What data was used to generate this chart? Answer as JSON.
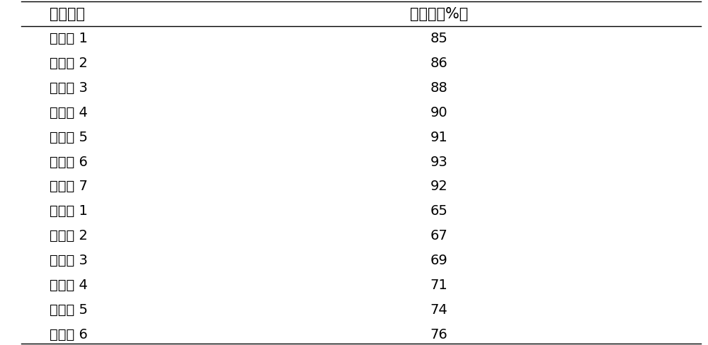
{
  "col1_header": "助剂编号",
  "col2_header": "悬浮率（%）",
  "rows": [
    [
      "实施例 1",
      "85"
    ],
    [
      "实施例 2",
      "86"
    ],
    [
      "实施例 3",
      "88"
    ],
    [
      "实施例 4",
      "90"
    ],
    [
      "实施例 5",
      "91"
    ],
    [
      "实施例 6",
      "93"
    ],
    [
      "实施例 7",
      "92"
    ],
    [
      "对比例 1",
      "65"
    ],
    [
      "对比例 2",
      "67"
    ],
    [
      "对比例 3",
      "69"
    ],
    [
      "对比例 4",
      "71"
    ],
    [
      "对比例 5",
      "74"
    ],
    [
      "对比例 6",
      "76"
    ]
  ],
  "bg_color": "#ffffff",
  "text_color": "#000000",
  "header_fontsize": 15,
  "cell_fontsize": 14,
  "figsize": [
    10.0,
    4.88
  ]
}
